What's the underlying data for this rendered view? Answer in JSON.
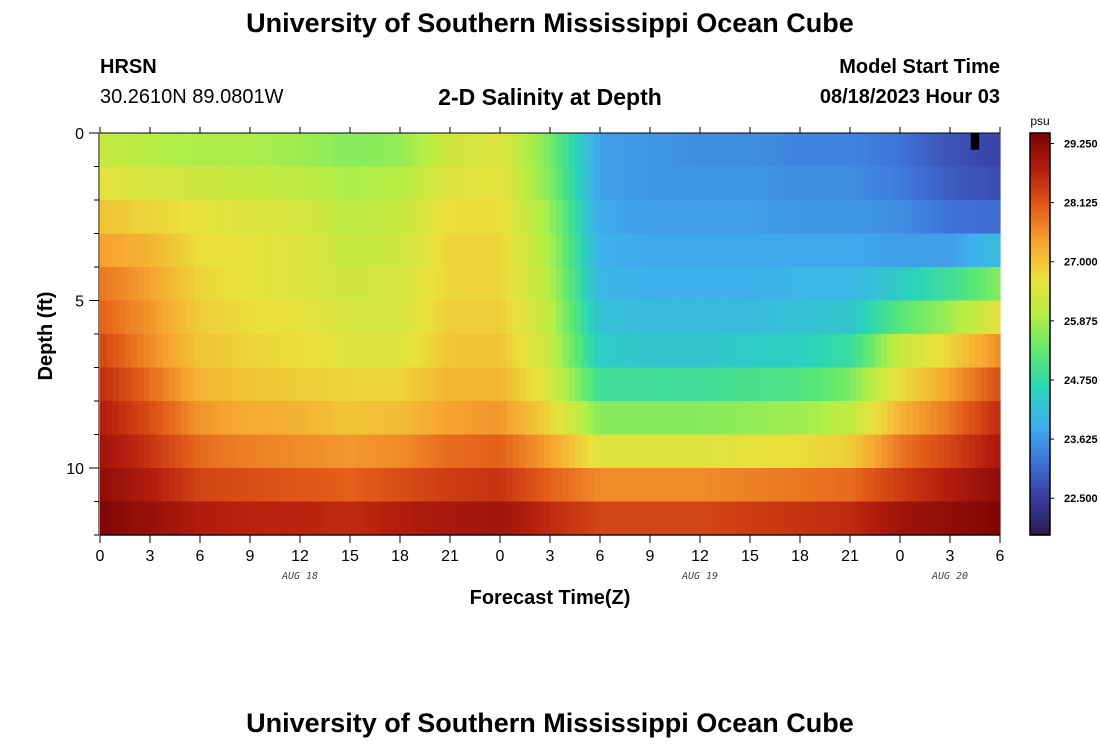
{
  "header": {
    "title": "University of Southern Mississippi Ocean Cube",
    "station": "HRSN",
    "coords": "30.2610N  89.0801W",
    "subtitle": "2-D Salinity at Depth",
    "model_start_label": "Model Start Time",
    "model_start_value": "08/18/2023 Hour 03"
  },
  "footer": {
    "title": "University of Southern Mississippi Ocean Cube"
  },
  "colors": {
    "scale": [
      "#2a1a4d",
      "#3a3a9e",
      "#3f72d9",
      "#3fb0ee",
      "#2ad4b8",
      "#5ce872",
      "#b5ee45",
      "#ebe03c",
      "#f7a530",
      "#e25a18",
      "#b51e0e",
      "#7a0404"
    ]
  },
  "chart_data": {
    "type": "heatmap",
    "title": "2-D Salinity at Depth",
    "xlabel": "Forecast Time(Z)",
    "ylabel": "Depth (ft)",
    "x_range": [
      0,
      54
    ],
    "y_range": [
      0,
      12
    ],
    "x_ticks": [
      0,
      3,
      6,
      9,
      12,
      15,
      18,
      21,
      24,
      27,
      30,
      33,
      36,
      39,
      42,
      45,
      48,
      51,
      54
    ],
    "x_tick_labels": [
      "0",
      "3",
      "6",
      "9",
      "12",
      "15",
      "18",
      "21",
      "0",
      "3",
      "6",
      "9",
      "12",
      "15",
      "18",
      "21",
      "0",
      "3",
      "6"
    ],
    "date_labels": [
      {
        "x": 12,
        "text": "AUG 18"
      },
      {
        "x": 36,
        "text": "AUG 19"
      },
      {
        "x": 51,
        "text": "AUG 20"
      }
    ],
    "y_ticks": [
      0,
      5,
      10
    ],
    "y_tick_labels": [
      "0",
      "5",
      "10"
    ],
    "colorbar": {
      "unit": "psu",
      "min": 21.8,
      "max": 29.45,
      "tick_values": [
        29.25,
        28.125,
        27.0,
        25.875,
        24.75,
        23.625,
        22.5
      ],
      "tick_labels": [
        "29.250",
        "28.125",
        "27.000",
        "25.875",
        "24.750",
        "23.625",
        "22.500"
      ]
    },
    "depths_ft": [
      0.5,
      1.5,
      2.5,
      3.5,
      4.5,
      5.5,
      6.5,
      7.5,
      8.5,
      9.5,
      10.5,
      11.5
    ],
    "times_hr": [
      0,
      3,
      6,
      9,
      12,
      15,
      18,
      21,
      24,
      27,
      30,
      33,
      36,
      39,
      42,
      45,
      48,
      51,
      54
    ],
    "salinity_psu": [
      [
        26.2,
        26.0,
        25.9,
        25.9,
        25.8,
        25.6,
        25.7,
        26.3,
        26.5,
        25.5,
        23.7,
        23.6,
        23.5,
        23.5,
        23.4,
        23.4,
        23.2,
        22.8,
        22.6
      ],
      [
        26.6,
        26.4,
        26.3,
        26.2,
        26.1,
        25.9,
        26.0,
        26.5,
        26.6,
        25.6,
        23.7,
        23.6,
        23.6,
        23.6,
        23.5,
        23.5,
        23.3,
        22.9,
        22.7
      ],
      [
        27.0,
        26.8,
        26.6,
        26.5,
        26.4,
        26.1,
        26.2,
        26.7,
        26.7,
        25.8,
        23.8,
        23.7,
        23.7,
        23.7,
        23.6,
        23.6,
        23.5,
        23.2,
        23.1
      ],
      [
        27.4,
        27.2,
        26.7,
        26.6,
        26.5,
        26.2,
        26.3,
        26.8,
        26.8,
        25.9,
        23.9,
        23.8,
        23.8,
        23.8,
        23.8,
        23.8,
        23.7,
        23.7,
        24.1
      ],
      [
        27.8,
        27.4,
        26.8,
        26.6,
        26.5,
        26.3,
        26.4,
        26.8,
        26.8,
        26.0,
        24.0,
        23.9,
        23.9,
        23.9,
        24.0,
        24.0,
        24.4,
        24.9,
        25.6
      ],
      [
        28.0,
        27.5,
        26.9,
        26.7,
        26.6,
        26.4,
        26.4,
        26.9,
        26.9,
        26.1,
        24.2,
        24.1,
        24.1,
        24.1,
        24.2,
        24.3,
        25.2,
        25.8,
        26.6
      ],
      [
        28.3,
        27.6,
        27.0,
        26.8,
        26.7,
        26.5,
        26.5,
        27.0,
        27.0,
        26.2,
        24.4,
        24.3,
        24.3,
        24.4,
        24.5,
        24.8,
        26.2,
        26.8,
        27.6
      ],
      [
        28.6,
        27.9,
        27.2,
        27.0,
        26.9,
        26.8,
        26.8,
        27.2,
        27.2,
        26.4,
        24.9,
        24.9,
        24.9,
        25.0,
        25.1,
        25.5,
        26.7,
        27.4,
        28.2
      ],
      [
        28.8,
        28.2,
        27.5,
        27.3,
        27.2,
        27.0,
        27.1,
        27.4,
        27.5,
        26.8,
        25.6,
        25.6,
        25.6,
        25.7,
        25.8,
        26.1,
        27.2,
        27.8,
        28.6
      ],
      [
        29.0,
        28.5,
        27.9,
        27.7,
        27.6,
        27.5,
        27.6,
        27.9,
        28.0,
        27.4,
        26.5,
        26.5,
        26.5,
        26.6,
        26.7,
        26.9,
        27.8,
        28.3,
        28.9
      ],
      [
        29.2,
        28.8,
        28.3,
        28.2,
        28.1,
        28.0,
        28.2,
        28.4,
        28.5,
        28.0,
        27.6,
        27.6,
        27.6,
        27.7,
        27.8,
        27.9,
        28.4,
        28.8,
        29.2
      ],
      [
        29.4,
        29.1,
        28.8,
        28.7,
        28.7,
        28.6,
        28.8,
        28.9,
        29.0,
        28.6,
        28.3,
        28.3,
        28.3,
        28.4,
        28.5,
        28.6,
        29.0,
        29.2,
        29.4
      ]
    ],
    "missing_cell": {
      "time_hr": 52.5,
      "depth_ft": 0.25
    }
  }
}
